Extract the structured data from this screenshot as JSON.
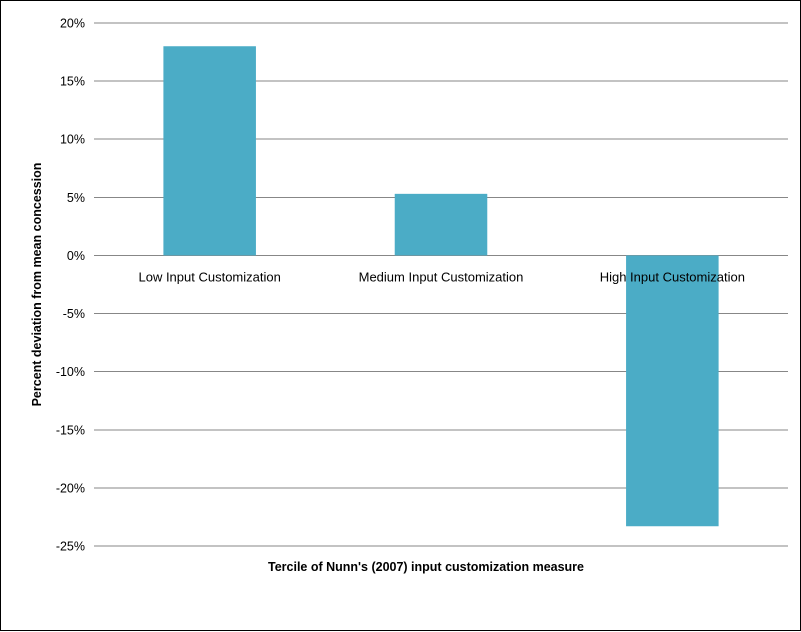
{
  "chart_data": {
    "type": "bar",
    "title": "",
    "xlabel": "Tercile of Nunn's (2007) input customization measure",
    "ylabel": "Percent deviation from mean concession",
    "categories": [
      "Low Input Customization",
      "Medium Input Customization",
      "High Input Customization"
    ],
    "values": [
      18.0,
      5.3,
      -23.3
    ],
    "ylim": [
      -25,
      20
    ],
    "yticks": [
      20,
      15,
      10,
      5,
      0,
      -5,
      -10,
      -15,
      -20,
      -25
    ],
    "ytick_labels": [
      "20%",
      "15%",
      "10%",
      "5%",
      "0%",
      "-5%",
      "-10%",
      "-15%",
      "-20%",
      "-25%"
    ],
    "grid": true,
    "legend": "none",
    "bar_color": "#4BACC6",
    "grid_color": "#878787"
  }
}
